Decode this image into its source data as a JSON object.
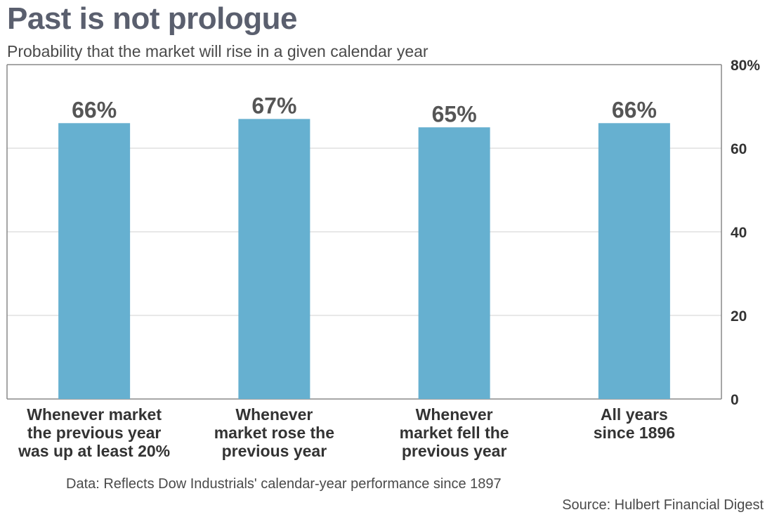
{
  "title": "Past is not prologue",
  "subtitle": "Probability that the market will rise in a given calendar year",
  "note": "Data: Reflects Dow Industrials' calendar-year performance since 1897",
  "source": "Source: Hulbert Financial Digest",
  "colors": {
    "bar": "#66b0d0",
    "grid": "#d9d9d9",
    "axis": "#888888"
  },
  "chart_data": {
    "type": "bar",
    "categories": [
      [
        "Whenever market",
        "the previous year",
        "was up at least 20%"
      ],
      [
        "Whenever",
        "market rose the",
        "previous year"
      ],
      [
        "Whenever",
        "market fell the",
        "previous year"
      ],
      [
        "All years",
        "since 1896"
      ]
    ],
    "values": [
      66,
      67,
      65,
      66
    ],
    "data_labels": [
      "66%",
      "67%",
      "65%",
      "66%"
    ],
    "ylim": [
      0,
      80
    ],
    "yticks": [
      0,
      20,
      40,
      60,
      80
    ],
    "ytick_labels": [
      "0",
      "20",
      "40",
      "60",
      "80%"
    ],
    "y_axis_side": "right",
    "grid": true
  }
}
